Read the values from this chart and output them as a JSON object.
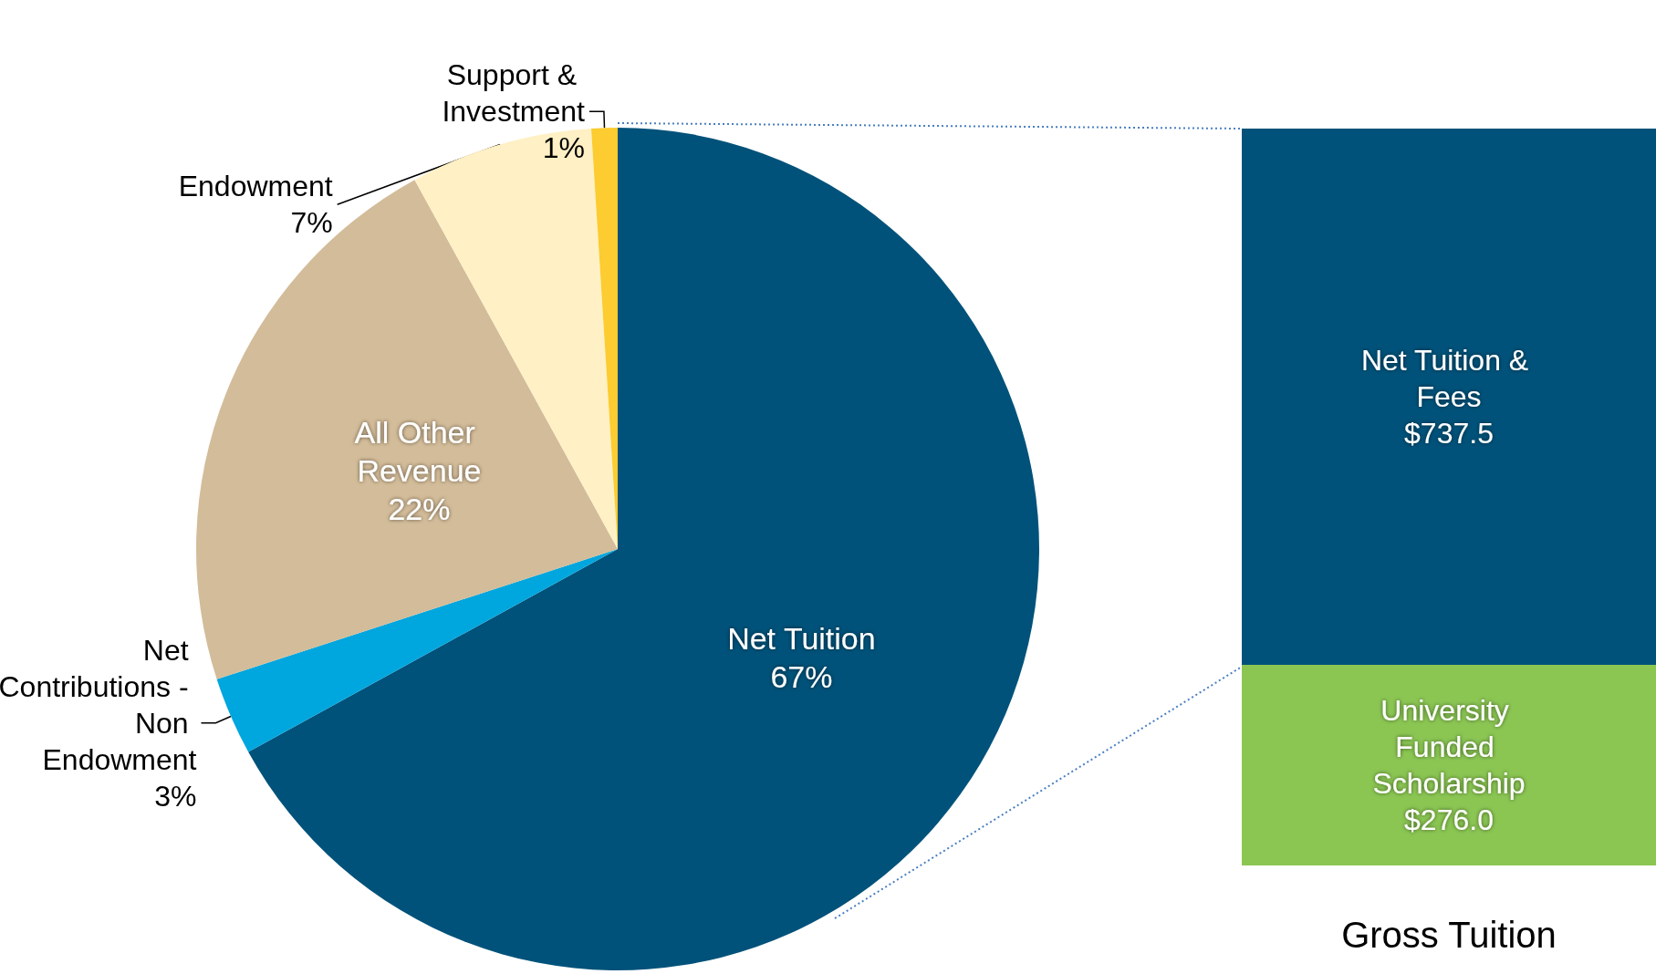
{
  "chart_data": [
    {
      "type": "pie",
      "categories": [
        "Net Tuition",
        "Net Contributions - Non Endowment",
        "All Other Revenue",
        "Endowment",
        "Support & Investment"
      ],
      "values": [
        67,
        3,
        22,
        7,
        1
      ],
      "value_labels": [
        "67%",
        "3%",
        "22%",
        "7%",
        "1%"
      ],
      "colors": [
        "#00527a",
        "#00a6de",
        "#d3bc99",
        "#fff0c5",
        "#fccc30"
      ],
      "legend": false
    },
    {
      "type": "bar",
      "stacked": true,
      "categories": [
        null
      ],
      "xlabel": "Gross Tuition",
      "legend": false,
      "series": [
        {
          "name": "University Funded Scholarship",
          "color": "#8bc653",
          "values": [
            276.0
          ],
          "value_labels": [
            "$276.0"
          ]
        },
        {
          "name": "Net Tuition & Fees",
          "color": "#00527a",
          "values": [
            737.5
          ],
          "value_labels": [
            "$737.5"
          ]
        }
      ]
    }
  ]
}
